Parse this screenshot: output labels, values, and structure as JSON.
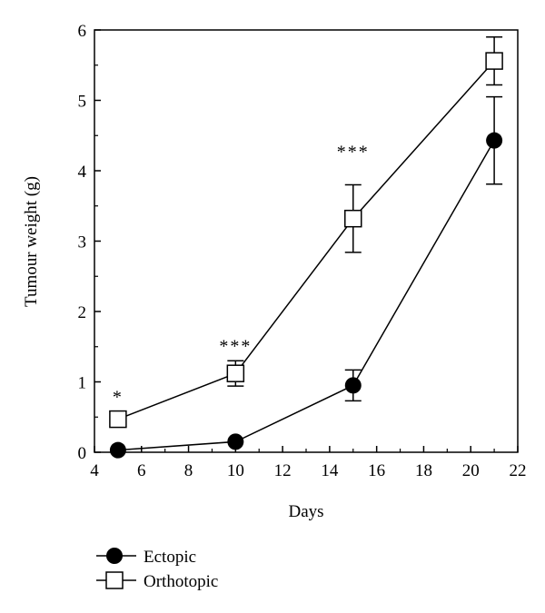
{
  "chart_data": {
    "type": "line",
    "title": "",
    "xlabel": "Days",
    "ylabel": "Tumour weight (g)",
    "xlim": [
      4,
      22
    ],
    "ylim": [
      0,
      6
    ],
    "xticks": [
      4,
      6,
      8,
      10,
      12,
      14,
      16,
      18,
      20,
      22
    ],
    "yticks": [
      0,
      1,
      2,
      3,
      4,
      5,
      6
    ],
    "grid": false,
    "legend_position": "bottom-left, below plot",
    "series": [
      {
        "name": "Ectopic",
        "marker": "filled-circle",
        "x": [
          5,
          10,
          15,
          21
        ],
        "y": [
          0.03,
          0.15,
          0.95,
          4.43
        ],
        "err": [
          0.0,
          0.0,
          0.22,
          0.62
        ]
      },
      {
        "name": "Orthotopic",
        "marker": "open-square",
        "x": [
          5,
          10,
          15,
          21
        ],
        "y": [
          0.47,
          1.12,
          3.32,
          5.56
        ],
        "err": [
          0.0,
          0.18,
          0.48,
          0.34
        ]
      }
    ],
    "annotations": [
      {
        "x": 5,
        "y": 0.47,
        "text": "*"
      },
      {
        "x": 10,
        "y": 1.3,
        "text": "***"
      },
      {
        "x": 15,
        "y": 3.8,
        "text": "***"
      }
    ]
  }
}
